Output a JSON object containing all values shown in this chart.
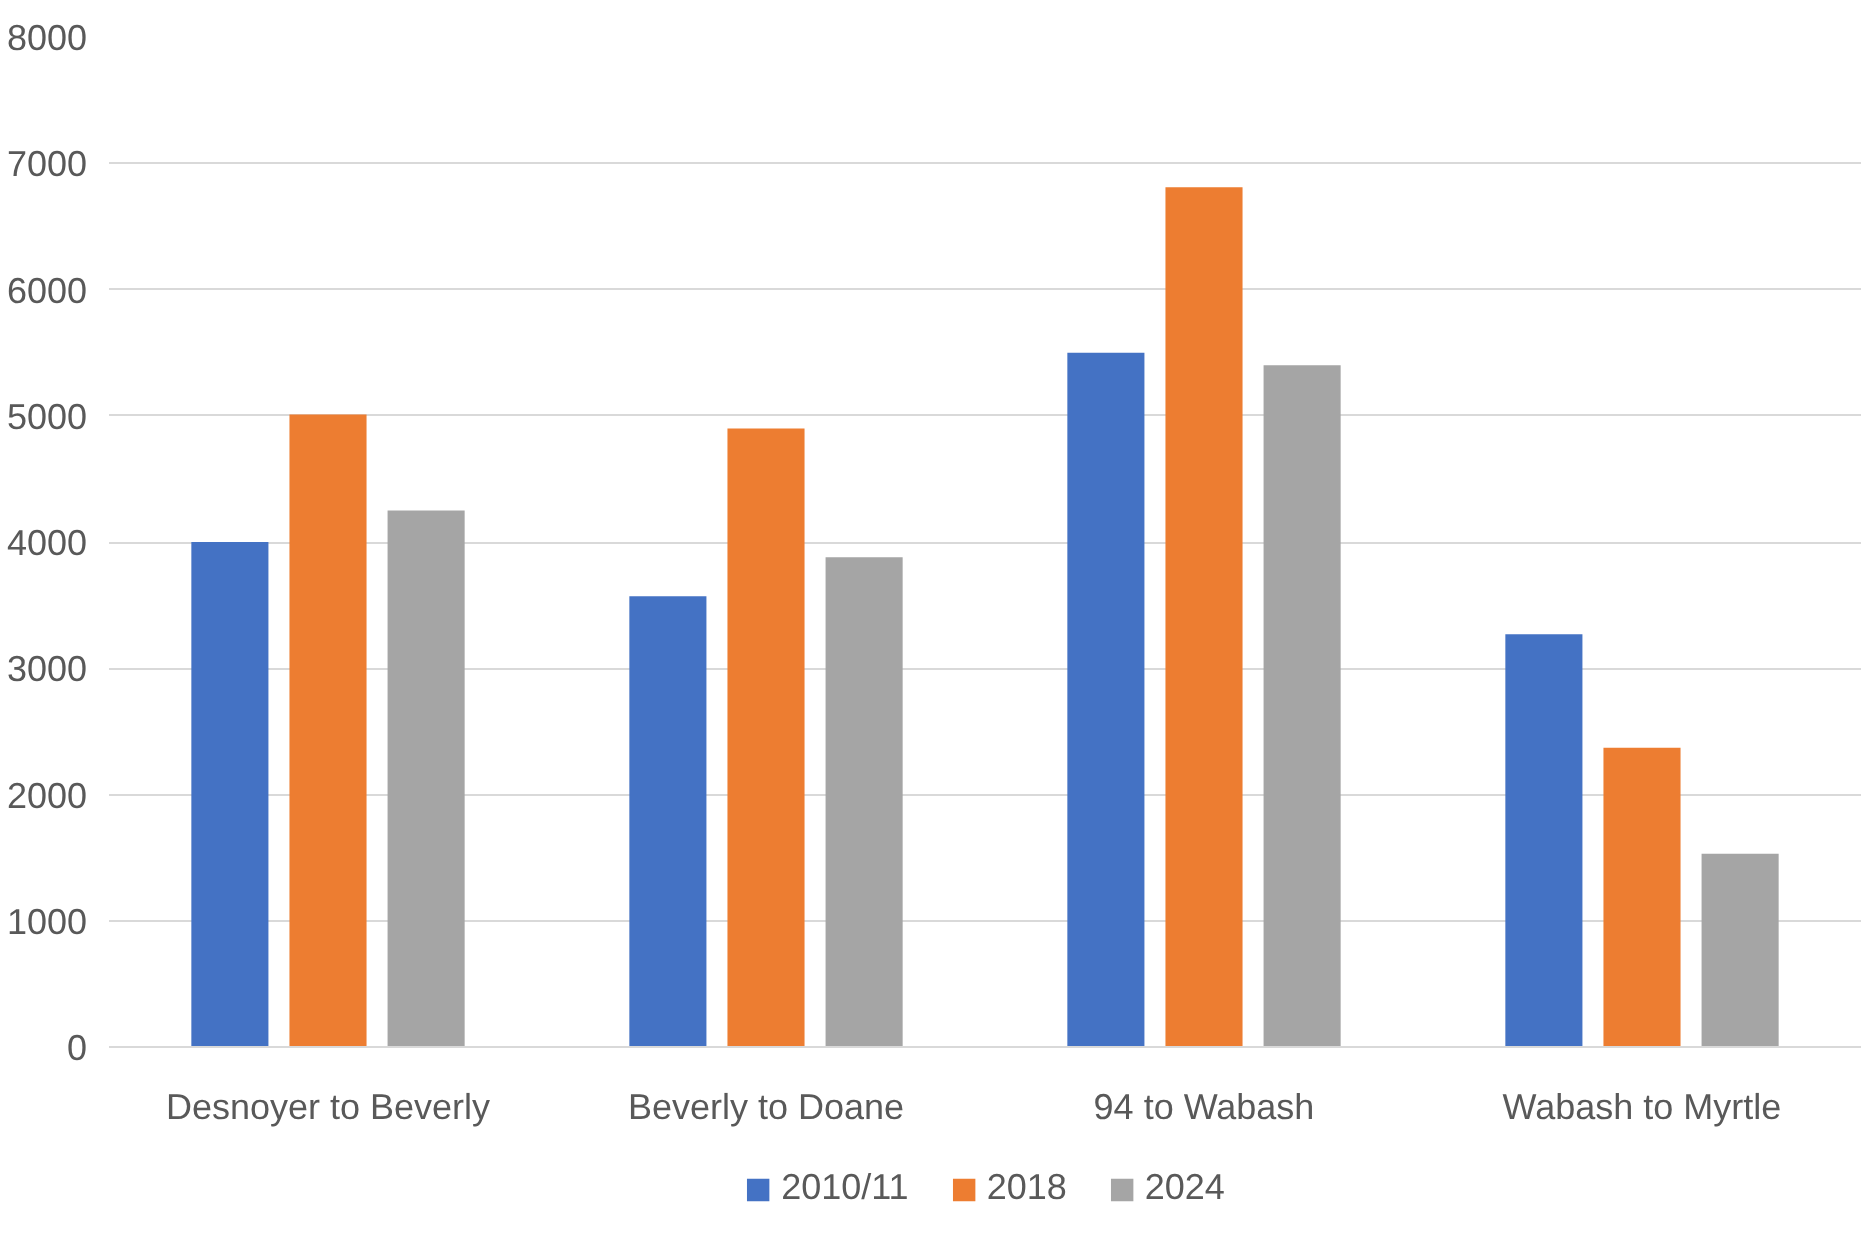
{
  "chart_data": {
    "type": "bar",
    "categories": [
      "Desnoyer to Beverly",
      "Beverly to Doane",
      "94 to Wabash",
      "Wabash to Myrtle"
    ],
    "series": [
      {
        "name": "2010/11",
        "color": "#4472c4",
        "values": [
          4000,
          3570,
          5500,
          3270
        ]
      },
      {
        "name": "2018",
        "color": "#ed7d31",
        "values": [
          5010,
          4900,
          6810,
          2370
        ]
      },
      {
        "name": "2024",
        "color": "#a5a5a5",
        "values": [
          4250,
          3880,
          5400,
          1530
        ]
      }
    ],
    "ylim": [
      0,
      8000
    ],
    "yticks": [
      0,
      1000,
      2000,
      3000,
      4000,
      5000,
      6000,
      7000,
      8000
    ],
    "grid": "y",
    "legend": "bottom"
  }
}
